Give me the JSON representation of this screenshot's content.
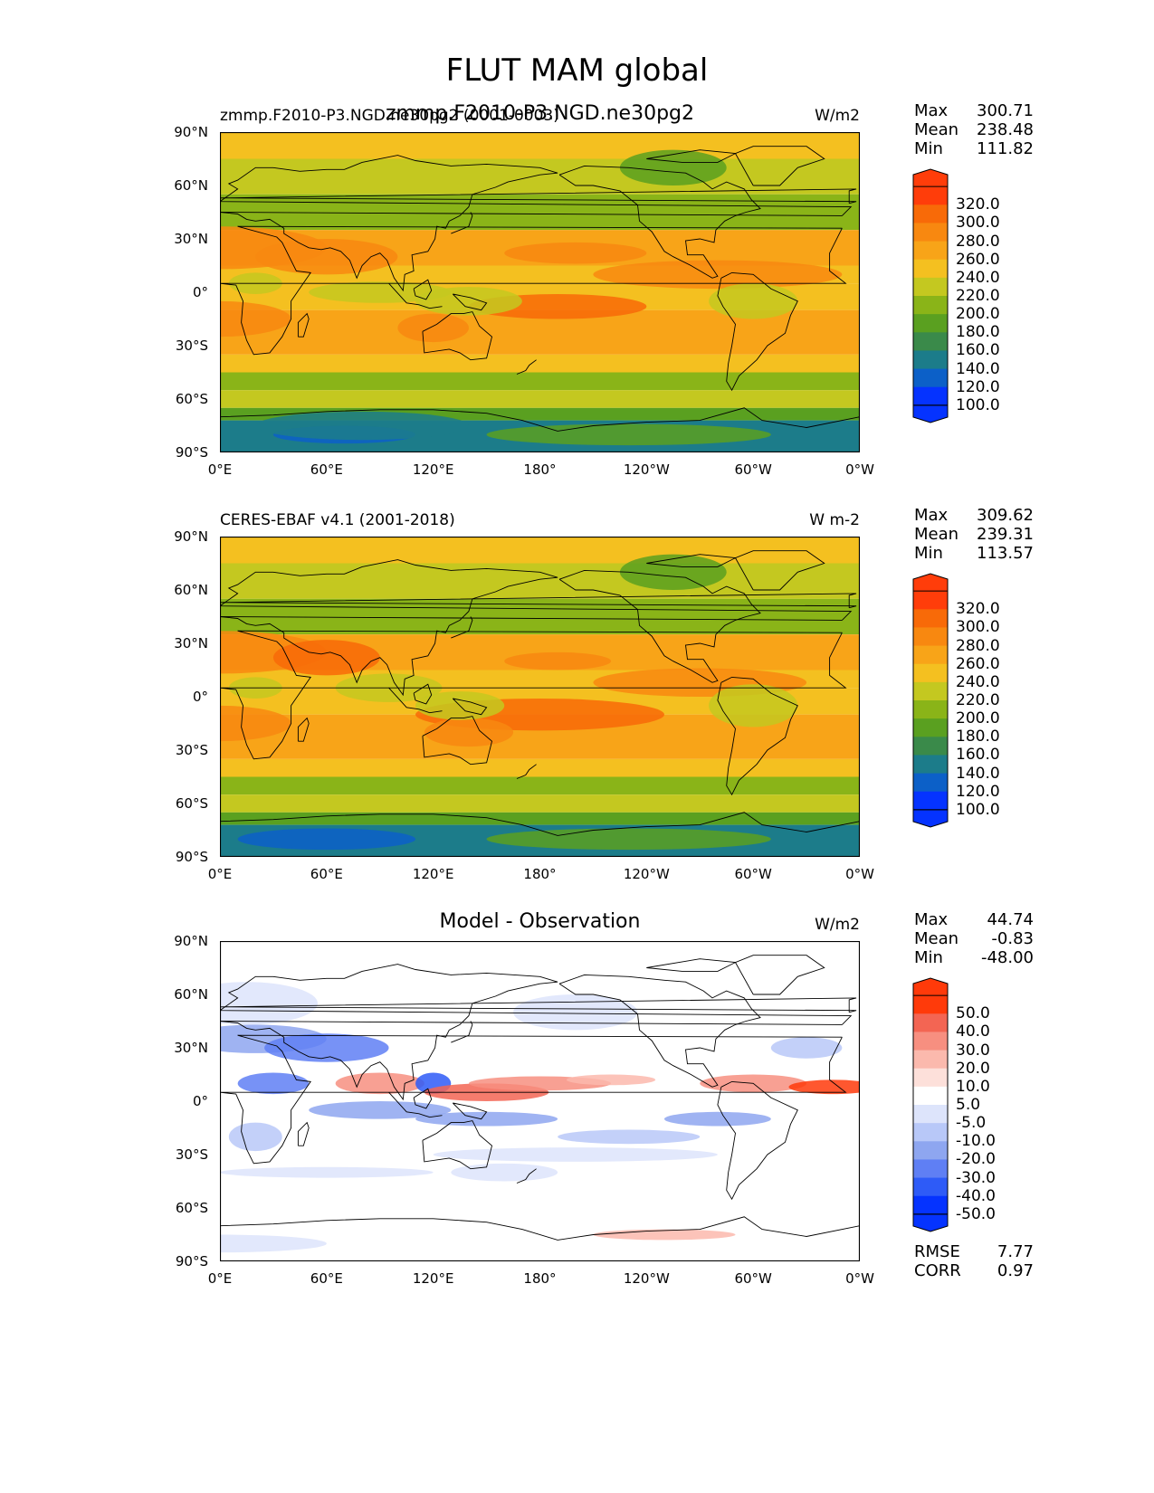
{
  "figure_title": "FLUT MAM global",
  "colors": {
    "test_levels": [
      "#0533ff",
      "#0c60c8",
      "#1c7c8a",
      "#3a8a4a",
      "#5aa020",
      "#8ab418",
      "#c4c820",
      "#f4c020",
      "#f8a418",
      "#f88810",
      "#f86a08",
      "#ff3d0a"
    ],
    "diff_levels": [
      "#0533ff",
      "#2e5bf7",
      "#5f7ff4",
      "#8ea6f0",
      "#b8c8f8",
      "#dde4fb",
      "#ffffff",
      "#fde0da",
      "#fbb9ad",
      "#f78f80",
      "#f36553",
      "#ff3a0a"
    ],
    "land_outline": "#000000"
  },
  "panels": [
    {
      "id": "test",
      "title_left": "zmmp.F2010-P3.NGD.ne30pg2 (0001-0003)",
      "title_center": "zmmp.F2010-P3.NGD.ne30pg2",
      "units": "W/m2",
      "stats": {
        "max_label": "Max",
        "max": "300.71",
        "mean_label": "Mean",
        "mean": "238.48",
        "min_label": "Min",
        "min": "111.82"
      },
      "colorbar": [
        "320.0",
        "300.0",
        "280.0",
        "260.0",
        "240.0",
        "220.0",
        "200.0",
        "180.0",
        "160.0",
        "140.0",
        "120.0",
        "100.0"
      ]
    },
    {
      "id": "ref",
      "title_left": "CERES-EBAF v4.1 (2001-2018)",
      "title_center": "",
      "units": "W m-2",
      "stats": {
        "max_label": "Max",
        "max": "309.62",
        "mean_label": "Mean",
        "mean": "239.31",
        "min_label": "Min",
        "min": "113.57"
      },
      "colorbar": [
        "320.0",
        "300.0",
        "280.0",
        "260.0",
        "240.0",
        "220.0",
        "200.0",
        "180.0",
        "160.0",
        "140.0",
        "120.0",
        "100.0"
      ]
    },
    {
      "id": "diff",
      "title_left": "",
      "title_center": "Model - Observation",
      "units": "W/m2",
      "stats": {
        "max_label": "Max",
        "max": "44.74",
        "mean_label": "Mean",
        "mean": "-0.83",
        "min_label": "Min",
        "min": "-48.00"
      },
      "colorbar": [
        "50.0",
        "40.0",
        "30.0",
        "20.0",
        "10.0",
        "5.0",
        "-5.0",
        "-10.0",
        "-20.0",
        "-30.0",
        "-40.0",
        "-50.0"
      ],
      "extra_stats": {
        "rmse_label": "RMSE",
        "rmse": "7.77",
        "corr_label": "CORR",
        "corr": "0.97"
      }
    }
  ],
  "lat_ticks": [
    "90°N",
    "60°N",
    "30°N",
    "0°",
    "30°S",
    "60°S",
    "90°S"
  ],
  "lon_ticks": [
    "0°E",
    "60°E",
    "120°E",
    "180°",
    "120°W",
    "60°W",
    "0°W"
  ]
}
